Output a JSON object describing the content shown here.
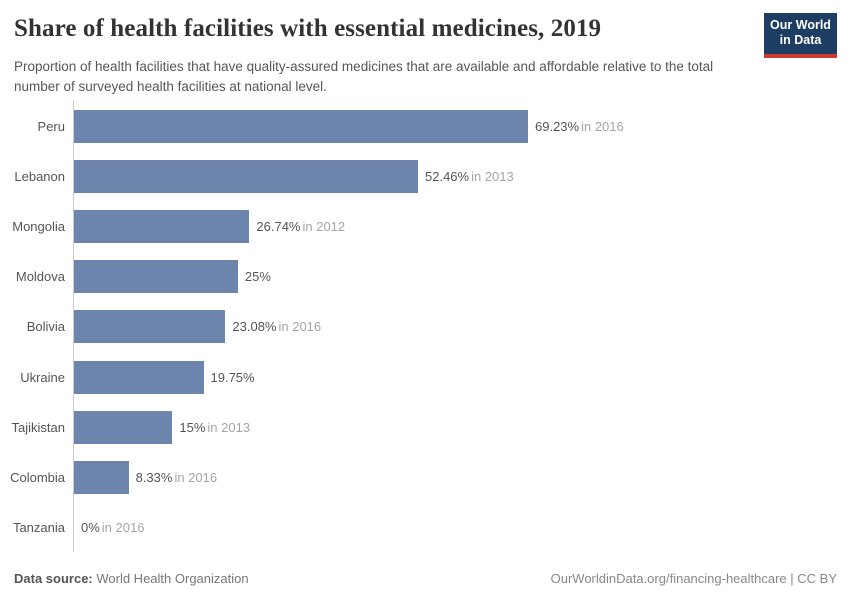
{
  "header": {
    "title": "Share of health facilities with essential medicines, 2019",
    "subtitle": "Proportion of health facilities that have quality-assured medicines that are available and affordable relative to the total number of surveyed health facilities at national level.",
    "logo": {
      "line1": "Our World",
      "line2": "in Data"
    }
  },
  "chart_data": {
    "type": "bar",
    "orientation": "horizontal",
    "title": "Share of health facilities with essential medicines, 2019",
    "categories": [
      "Peru",
      "Lebanon",
      "Mongolia",
      "Moldova",
      "Bolivia",
      "Ukraine",
      "Tajikistan",
      "Colombia",
      "Tanzania"
    ],
    "values": [
      69.23,
      52.46,
      26.74,
      25,
      23.08,
      19.75,
      15,
      8.33,
      0
    ],
    "value_labels": [
      "69.23%",
      "52.46%",
      "26.74%",
      "25%",
      "23.08%",
      "19.75%",
      "15%",
      "8.33%",
      "0%"
    ],
    "year_notes": [
      "in 2016",
      "in 2013",
      "in 2012",
      "",
      "in 2016",
      "",
      "in 2013",
      "in 2016",
      "in 2016"
    ],
    "unit": "%",
    "xlim": [
      0,
      69.23
    ],
    "grid": false,
    "legend": "none"
  },
  "footer": {
    "datasource_label": "Data source:",
    "datasource_value": " World Health Organization",
    "credit": "OurWorldinData.org/financing-healthcare | CC BY"
  },
  "colors": {
    "bar": "#6d85ac",
    "logo_bg": "#1d3d63",
    "logo_stripe": "#cc3a31",
    "axis": "#cccccc"
  }
}
